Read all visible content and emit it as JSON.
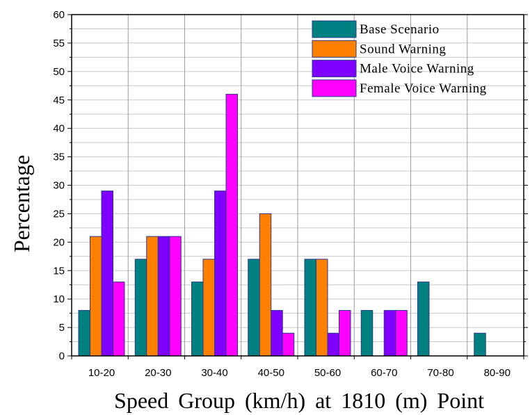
{
  "chart_data": {
    "type": "bar",
    "title": "",
    "xlabel": "Speed Group (km/h) at 1810 (m) Point",
    "ylabel": "Percentage",
    "categories": [
      "10-20",
      "20-30",
      "30-40",
      "40-50",
      "50-60",
      "60-70",
      "70-80",
      "80-90"
    ],
    "ylim": [
      0,
      60
    ],
    "yticks": [
      0,
      5,
      10,
      15,
      20,
      25,
      30,
      35,
      40,
      45,
      50,
      55,
      60
    ],
    "grid": true,
    "legend_position": "top-right",
    "series": [
      {
        "name": "Base Scenario",
        "color": "#008080",
        "values": [
          8,
          17,
          13,
          17,
          17,
          8,
          13,
          4
        ]
      },
      {
        "name": "Sound Warning",
        "color": "#ff8000",
        "values": [
          21,
          21,
          17,
          25,
          17,
          0,
          0,
          0
        ]
      },
      {
        "name": "Male Voice Warning",
        "color": "#8000ff",
        "values": [
          29,
          21,
          29,
          8,
          4,
          8,
          0,
          0
        ]
      },
      {
        "name": "Female Voice Warning",
        "color": "#ff00ff",
        "values": [
          13,
          21,
          46,
          4,
          8,
          8,
          0,
          0
        ]
      }
    ]
  }
}
